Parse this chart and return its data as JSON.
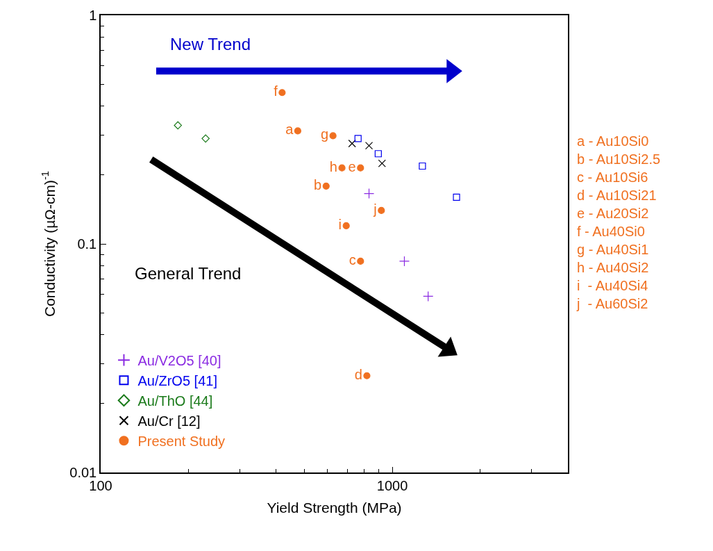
{
  "chart_data": {
    "type": "scatter",
    "xlabel": "Yield Strength (MPa)",
    "ylabel": "Conductivity (µΩ-cm)$^{-1}$",
    "log": "xy",
    "xlim": [
      100,
      4000
    ],
    "xticks": [
      100,
      1000
    ],
    "ylim": [
      0.01,
      1
    ],
    "yticks": [
      0.01,
      0.1,
      1
    ],
    "legend": "bottom left",
    "series": [
      {
        "name": "Au/V2O5 [40]",
        "color": "#8a2be2",
        "marker": "cross",
        "x": [
          832,
          1100,
          1327
        ],
        "values": [
          0.166,
          0.084,
          0.059
        ]
      },
      {
        "name": "Au/ZrO5 [41]",
        "color": "#0000ee",
        "marker": "square",
        "x": [
          763,
          895,
          1268,
          1660
        ],
        "values": [
          0.289,
          0.248,
          0.219,
          0.16
        ]
      },
      {
        "name": "Au/ThO [44]",
        "color": "#1a7a1a",
        "marker": "diamond",
        "x": [
          184,
          229
        ],
        "values": [
          0.33,
          0.289
        ]
      },
      {
        "name": "Au/Cr [12]",
        "color": "#000000",
        "marker": "x",
        "x": [
          728,
          832,
          922
        ],
        "values": [
          0.275,
          0.269,
          0.225
        ]
      },
      {
        "type": "line",
        "color": "#0000cc",
        "marker": "triangle",
        "x": [
          155,
          1600
        ],
        "values": [
          0.57,
          0.57
        ]
      },
      {
        "type": "line",
        "color": "#000000",
        "marker": "triangle",
        "x": [
          149,
          1560
        ],
        "values": [
          0.234,
          0.0345
        ]
      },
      {
        "name": "Present Study",
        "color": "#f07020",
        "marker": "circle",
        "x": [
          474,
          593,
          778,
          818,
          778,
          419,
          626,
          672,
          695,
          917
        ],
        "values": [
          0.312,
          0.179,
          0.084,
          0.0265,
          0.215,
          0.459,
          0.297,
          0.215,
          0.12,
          0.14
        ],
        "value_labels": [
          "a",
          "b",
          "c",
          "d",
          "e",
          "f",
          "g",
          "h",
          "i",
          "j"
        ]
      }
    ],
    "annotations": [
      "New Trend",
      "General Trend",
      "a - Au10Si0",
      "b - Au10Si2.5",
      "c - Au10Si6",
      "d - Au10Si21",
      "e - Au20Si2",
      "f - Au40Si0",
      "g - Au40Si1",
      "h - Au40Si2",
      "i  - Au40Si4",
      "j  - Au60Si2"
    ]
  }
}
